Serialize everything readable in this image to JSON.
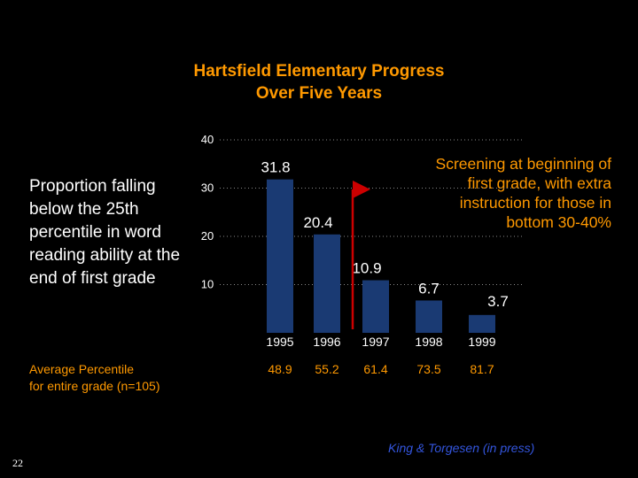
{
  "chart_data": {
    "type": "bar",
    "title": [
      "Hartsfield Elementary Progress",
      "Over Five Years"
    ],
    "ylabel": [
      "Proportion falling",
      "below the 25th",
      "percentile in word",
      "reading ability at the",
      "end of first grade"
    ],
    "categories": [
      "1995",
      "1996",
      "1997",
      "1998",
      "1999"
    ],
    "values": [
      31.8,
      20.4,
      10.9,
      6.7,
      3.7
    ],
    "value_labels": [
      "31.8",
      "20.4",
      "10.9",
      "6.7",
      "3.7"
    ],
    "y_ticks": [
      "10",
      "20",
      "30",
      "40"
    ],
    "ylim": [
      0,
      40
    ],
    "grid": "dotted horizontal",
    "average_percentiles": [
      "48.9",
      "55.2",
      "61.4",
      "73.5",
      "81.7"
    ],
    "annotation": [
      "Screening at beginning of",
      "first grade, with extra",
      "instruction for those in",
      "bottom 30-40%"
    ]
  },
  "avg_label": [
    "Average Percentile",
    "for entire grade (n=105)"
  ],
  "citation": "King & Torgesen (in press)",
  "page_number": "22",
  "colors": {
    "bar": "#1a3a73",
    "title": "#ff9900",
    "arrow": "#cc0000",
    "citation": "#3355dd",
    "grid": "#888888",
    "axis_text": "#ffffff"
  }
}
